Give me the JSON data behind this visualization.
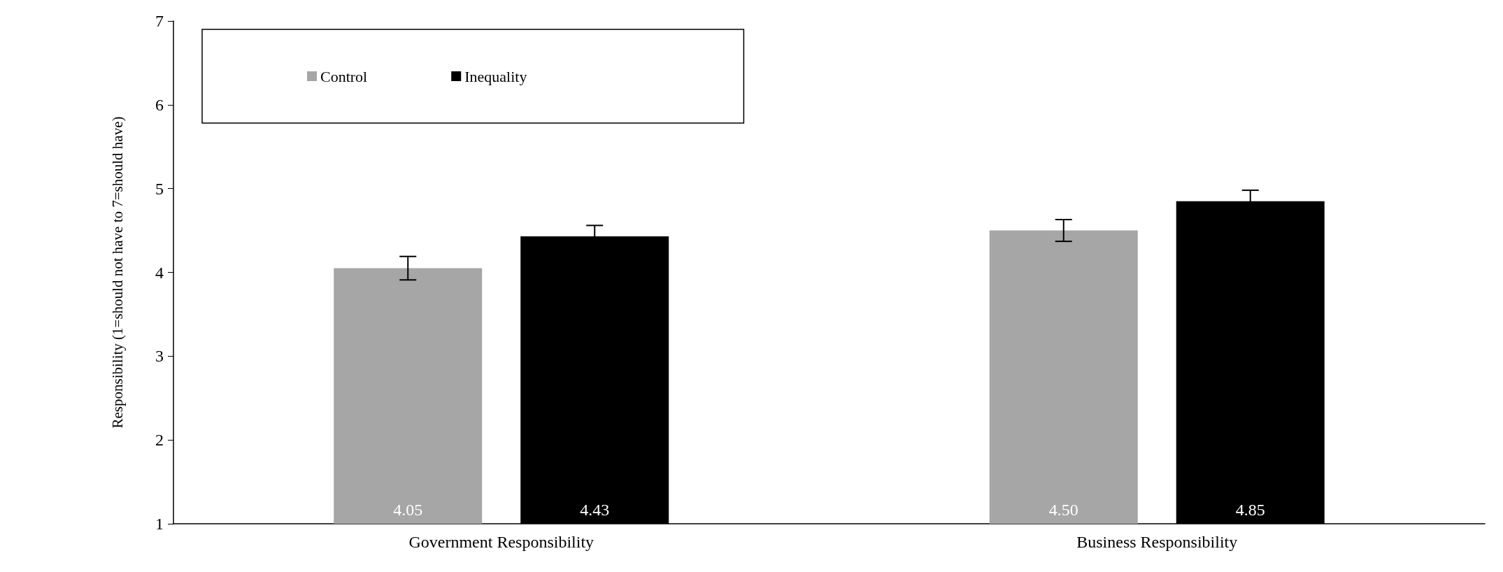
{
  "chart_data": {
    "type": "bar",
    "ylabel": "Responsibility (1=should not have to 7=should have)",
    "categories": [
      "Government Responsibility",
      "Business Responsibility"
    ],
    "series": [
      {
        "name": "Control",
        "color": "#a6a6a6",
        "values": [
          4.05,
          4.5
        ],
        "errors": [
          0.14,
          0.13
        ],
        "value_labels": [
          "4.05",
          "4.50"
        ]
      },
      {
        "name": "Inequality",
        "color": "#000000",
        "values": [
          4.43,
          4.85
        ],
        "errors": [
          0.13,
          0.13
        ],
        "value_labels": [
          "4.43",
          "4.85"
        ]
      }
    ],
    "ylim": [
      1,
      7
    ],
    "yticks": [
      1,
      2,
      3,
      4,
      5,
      6,
      7
    ],
    "grid": false,
    "legend": "top left"
  }
}
